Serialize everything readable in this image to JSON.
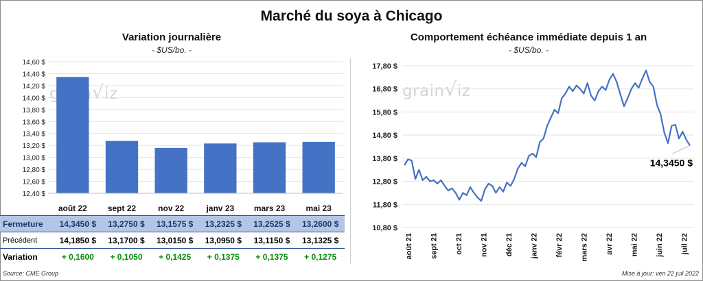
{
  "title": "Marché du soya à Chicago",
  "left": {
    "title": "Variation  journalière",
    "unit": "- $US/bo. -",
    "watermark": "grain iz",
    "chart_data": {
      "type": "bar",
      "categories": [
        "août 22",
        "sept 22",
        "nov 22",
        "janv 23",
        "mars 23",
        "mai 23"
      ],
      "values": [
        14.345,
        13.275,
        13.1575,
        13.2325,
        13.2525,
        13.26
      ],
      "ylim": [
        12.4,
        14.6
      ],
      "yticks": [
        "14,60 $",
        "14,40 $",
        "14,20 $",
        "14,00 $",
        "13,80 $",
        "13,60 $",
        "13,40 $",
        "13,20 $",
        "13,00 $",
        "12,80 $",
        "12,60 $",
        "12,40 $"
      ],
      "bar_color": "#4472c4",
      "grid": true
    },
    "table": {
      "rows": [
        {
          "label": "Fermeture",
          "cells": [
            "14,3450  $",
            "13,2750  $",
            "13,1575  $",
            "13,2325  $",
            "13,2525  $",
            "13,2600  $"
          ]
        },
        {
          "label": "Précédent",
          "cells": [
            "14,1850  $",
            "13,1700  $",
            "13,0150  $",
            "13,0950  $",
            "13,1150  $",
            "13,1325  $"
          ]
        },
        {
          "label": "Variation",
          "cells": [
            "+ 0,1600",
            "+ 0,1050",
            "+ 0,1425",
            "+ 0,1375",
            "+ 0,1375",
            "+ 0,1275"
          ]
        }
      ]
    }
  },
  "right": {
    "title": "Comportement  échéance immédiate depuis 1 an",
    "unit": "- $US/bo. -",
    "watermark": "grain iz",
    "last_label": "14,3450 $",
    "chart_data": {
      "type": "line",
      "yticks": [
        "17,80 $",
        "16,80 $",
        "15,80 $",
        "14,80 $",
        "13,80 $",
        "12,80 $",
        "11,80 $",
        "10,80 $"
      ],
      "ylim": [
        10.8,
        17.8
      ],
      "xlabels": [
        "août 21",
        "sept 21",
        "oct 21",
        "nov 21",
        "déc 21",
        "janv 22",
        "févr 22",
        "mars 22",
        "avr 22",
        "mai 22",
        "juin 22",
        "juil 22"
      ],
      "line_color": "#4472c4",
      "series": [
        {
          "x": 0,
          "y": 13.5
        },
        {
          "x": 1,
          "y": 13.75
        },
        {
          "x": 2,
          "y": 13.7
        },
        {
          "x": 3,
          "y": 12.9
        },
        {
          "x": 4,
          "y": 13.3
        },
        {
          "x": 5,
          "y": 12.85
        },
        {
          "x": 6,
          "y": 13.0
        },
        {
          "x": 7,
          "y": 12.8
        },
        {
          "x": 8,
          "y": 12.85
        },
        {
          "x": 9,
          "y": 12.7
        },
        {
          "x": 10,
          "y": 12.85
        },
        {
          "x": 11,
          "y": 12.6
        },
        {
          "x": 12,
          "y": 12.4
        },
        {
          "x": 13,
          "y": 12.5
        },
        {
          "x": 14,
          "y": 12.3
        },
        {
          "x": 15,
          "y": 12.0
        },
        {
          "x": 16,
          "y": 12.3
        },
        {
          "x": 17,
          "y": 12.2
        },
        {
          "x": 18,
          "y": 12.55
        },
        {
          "x": 19,
          "y": 12.3
        },
        {
          "x": 20,
          "y": 12.1
        },
        {
          "x": 21,
          "y": 11.95
        },
        {
          "x": 22,
          "y": 12.45
        },
        {
          "x": 23,
          "y": 12.7
        },
        {
          "x": 24,
          "y": 12.6
        },
        {
          "x": 25,
          "y": 12.3
        },
        {
          "x": 26,
          "y": 12.55
        },
        {
          "x": 27,
          "y": 12.35
        },
        {
          "x": 28,
          "y": 12.75
        },
        {
          "x": 29,
          "y": 12.6
        },
        {
          "x": 30,
          "y": 12.9
        },
        {
          "x": 31,
          "y": 13.35
        },
        {
          "x": 32,
          "y": 13.6
        },
        {
          "x": 33,
          "y": 13.45
        },
        {
          "x": 34,
          "y": 13.9
        },
        {
          "x": 35,
          "y": 14.0
        },
        {
          "x": 36,
          "y": 13.85
        },
        {
          "x": 37,
          "y": 14.5
        },
        {
          "x": 38,
          "y": 14.65
        },
        {
          "x": 39,
          "y": 15.2
        },
        {
          "x": 40,
          "y": 15.55
        },
        {
          "x": 41,
          "y": 15.9
        },
        {
          "x": 42,
          "y": 15.75
        },
        {
          "x": 43,
          "y": 16.4
        },
        {
          "x": 44,
          "y": 16.6
        },
        {
          "x": 45,
          "y": 16.9
        },
        {
          "x": 46,
          "y": 16.7
        },
        {
          "x": 47,
          "y": 16.95
        },
        {
          "x": 48,
          "y": 16.8
        },
        {
          "x": 49,
          "y": 16.6
        },
        {
          "x": 50,
          "y": 17.05
        },
        {
          "x": 51,
          "y": 16.5
        },
        {
          "x": 52,
          "y": 16.3
        },
        {
          "x": 53,
          "y": 16.7
        },
        {
          "x": 54,
          "y": 16.9
        },
        {
          "x": 55,
          "y": 16.75
        },
        {
          "x": 56,
          "y": 17.2
        },
        {
          "x": 57,
          "y": 17.45
        },
        {
          "x": 58,
          "y": 17.1
        },
        {
          "x": 59,
          "y": 16.55
        },
        {
          "x": 60,
          "y": 16.05
        },
        {
          "x": 61,
          "y": 16.4
        },
        {
          "x": 62,
          "y": 16.8
        },
        {
          "x": 63,
          "y": 17.05
        },
        {
          "x": 64,
          "y": 16.85
        },
        {
          "x": 65,
          "y": 17.25
        },
        {
          "x": 66,
          "y": 17.6
        },
        {
          "x": 67,
          "y": 17.1
        },
        {
          "x": 68,
          "y": 16.9
        },
        {
          "x": 69,
          "y": 16.1
        },
        {
          "x": 70,
          "y": 15.7
        },
        {
          "x": 71,
          "y": 14.9
        },
        {
          "x": 72,
          "y": 14.45
        },
        {
          "x": 73,
          "y": 15.2
        },
        {
          "x": 74,
          "y": 15.25
        },
        {
          "x": 75,
          "y": 14.65
        },
        {
          "x": 76,
          "y": 14.95
        },
        {
          "x": 77,
          "y": 14.6
        },
        {
          "x": 78,
          "y": 14.345
        }
      ]
    }
  },
  "footer": {
    "source": "Source: CME Group",
    "updated": "Mise à jour: ven 22 juil 2022"
  }
}
